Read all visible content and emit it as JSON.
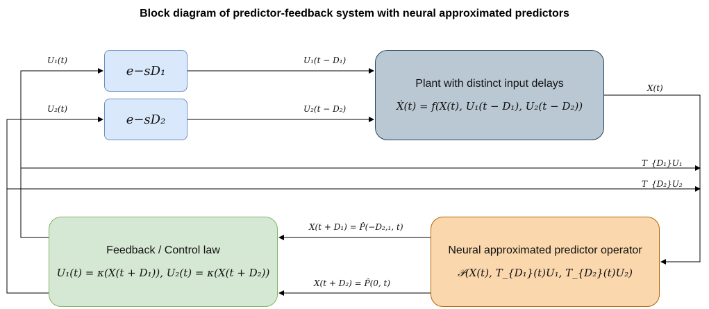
{
  "title": "Block diagram of predictor-feedback system with neural approximated predictors",
  "blocks": {
    "delay1": {
      "text": "e−sD₁"
    },
    "delay2": {
      "text": "e−sD₂"
    },
    "plant": {
      "title": "Plant with distinct input delays",
      "equation": "Ẋ(t) = f(X(t), U₁(t − D₁), U₂(t − D₂))"
    },
    "controller": {
      "title": "Feedback / Control law",
      "equation": "U₁(t) = κ(X(t + D₁)), U₂(t) = κ(X(t + D₂))"
    },
    "predictor": {
      "title": "Neural approximated predictor operator",
      "equation": "𝒫(X(t), T_{D₁}(t)U₁, T_{D₂}(t)U₂)"
    }
  },
  "signals": {
    "u1": "U₁(t)",
    "u2": "U₂(t)",
    "u1_delayed": "U₁(t − D₁)",
    "u2_delayed": "U₂(t − D₂)",
    "x": "X(t)",
    "td1u1": "T_{D₁}U₁",
    "td2u2": "T_{D₂}U₂",
    "pred1": "X(t + D₁) = P̂(−D₂,₁, t)",
    "pred2": "X(t + D₂) = P̂(0, t)"
  },
  "colors": {
    "delay_fill": "#dae8fc",
    "delay_stroke": "#6c8ebf",
    "plant_fill": "#bac8d3",
    "plant_stroke": "#23445d",
    "controller_fill": "#d5e8d4",
    "controller_stroke": "#82b366",
    "predictor_fill": "#fad7ac",
    "predictor_stroke": "#b46504"
  }
}
